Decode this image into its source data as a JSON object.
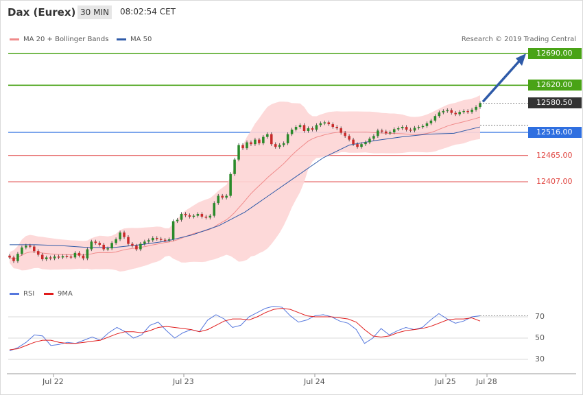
{
  "header": {
    "instrument": "Dax (Eurex)",
    "interval": "30 MIN",
    "clock": "08:02:54 CET"
  },
  "legend": {
    "bollinger_label": "MA 20 + Bollinger Bands",
    "ma50_label": "MA 50",
    "credit": "Research © 2019 Trading Central",
    "rsi_label": "RSI",
    "rsi_ma_label": "9MA"
  },
  "colors": {
    "bollinger_fill": "#fdd5d5",
    "bollinger_line": "#f08a8a",
    "ma50": "#2e5aa8",
    "green_level": "#49a316",
    "blue_level": "#2f6fe0",
    "red_level": "#e35757",
    "candle_up": "#2a8a2a",
    "candle_down": "#c92a2a",
    "rsi": "#5577dd",
    "rsi_ma": "#e01c1c",
    "arrow": "#2e5aa8",
    "last_price_bg": "#333333"
  },
  "price_tags": [
    {
      "label": "12690.00",
      "style": "green"
    },
    {
      "label": "12620.00",
      "style": "green"
    },
    {
      "label": "12580.50",
      "style": "dark"
    },
    {
      "label": "12516.00",
      "style": "blue"
    },
    {
      "label": "12465.00",
      "style": "plain"
    },
    {
      "label": "12407.00",
      "style": "plain"
    }
  ],
  "rsi_axis": [
    "70",
    "50",
    "30"
  ],
  "x_axis": [
    "Jul 22",
    "Jul 23",
    "Jul 24",
    "Jul 25",
    "Jul 28"
  ],
  "chart_data": [
    {
      "type": "candlestick",
      "title": "Dax (Eurex)",
      "interval": "30 MIN",
      "last_price": 12580.5,
      "levels": [
        {
          "value": 12690,
          "kind": "resistance"
        },
        {
          "value": 12620,
          "kind": "resistance"
        },
        {
          "value": 12516,
          "kind": "pivot"
        },
        {
          "value": 12465,
          "kind": "support"
        },
        {
          "value": 12407,
          "kind": "support"
        }
      ],
      "close": [
        12240,
        12232,
        12248,
        12262,
        12266,
        12264,
        12254,
        12246,
        12236,
        12240,
        12238,
        12242,
        12240,
        12243,
        12242,
        12240,
        12250,
        12244,
        12238,
        12258,
        12275,
        12272,
        12268,
        12258,
        12260,
        12272,
        12280,
        12295,
        12285,
        12270,
        12266,
        12258,
        12270,
        12275,
        12278,
        12283,
        12281,
        12279,
        12278,
        12280,
        12320,
        12323,
        12336,
        12333,
        12330,
        12332,
        12336,
        12330,
        12328,
        12332,
        12360,
        12376,
        12372,
        12376,
        12424,
        12456,
        12488,
        12481,
        12494,
        12490,
        12500,
        12492,
        12506,
        12512,
        12490,
        12484,
        12488,
        12492,
        12512,
        12522,
        12528,
        12532,
        12519,
        12525,
        12522,
        12532,
        12536,
        12538,
        12534,
        12528,
        12525,
        12515,
        12508,
        12500,
        12490,
        12484,
        12490,
        12494,
        12502,
        12508,
        12520,
        12518,
        12514,
        12516,
        12523,
        12525,
        12528,
        12522,
        12520,
        12526,
        12528,
        12530,
        12536,
        12542,
        12552,
        12560,
        12563,
        12565,
        12559,
        12556,
        12561,
        12563,
        12561,
        12566,
        12572,
        12580.5
      ],
      "open": [
        12244,
        12240,
        12232,
        12248,
        12262,
        12266,
        12264,
        12254,
        12246,
        12236,
        12240,
        12238,
        12242,
        12240,
        12243,
        12242,
        12240,
        12250,
        12244,
        12238,
        12258,
        12275,
        12272,
        12268,
        12258,
        12260,
        12272,
        12280,
        12295,
        12285,
        12270,
        12266,
        12258,
        12270,
        12275,
        12278,
        12283,
        12281,
        12279,
        12278,
        12280,
        12320,
        12323,
        12336,
        12333,
        12330,
        12332,
        12336,
        12330,
        12328,
        12332,
        12360,
        12376,
        12372,
        12376,
        12424,
        12456,
        12488,
        12481,
        12494,
        12490,
        12500,
        12492,
        12506,
        12512,
        12490,
        12484,
        12488,
        12492,
        12512,
        12522,
        12528,
        12532,
        12519,
        12525,
        12522,
        12532,
        12536,
        12538,
        12534,
        12528,
        12525,
        12515,
        12508,
        12500,
        12490,
        12484,
        12490,
        12494,
        12502,
        12508,
        12520,
        12518,
        12514,
        12516,
        12523,
        12525,
        12528,
        12522,
        12520,
        12526,
        12528,
        12530,
        12536,
        12542,
        12552,
        12560,
        12563,
        12565,
        12559,
        12556,
        12561,
        12563,
        12561,
        12566,
        12572
      ],
      "ma20_start": 12262,
      "ma20_end": 12570,
      "ma50": [
        12268,
        12268,
        12266,
        12262,
        12262,
        12268,
        12276,
        12290,
        12310,
        12340,
        12380,
        12420,
        12460,
        12488,
        12498,
        12506,
        12512,
        12514,
        12528
      ],
      "rsi": {
        "axis_range": [
          20,
          80
        ],
        "levels": [
          70,
          50,
          30
        ],
        "rsi": [
          38,
          41,
          46,
          53,
          52,
          43,
          44,
          46,
          45,
          48,
          51,
          48,
          55,
          60,
          56,
          50,
          53,
          62,
          65,
          57,
          50,
          55,
          58,
          56,
          67,
          72,
          68,
          60,
          62,
          70,
          74,
          78,
          80,
          79,
          71,
          65,
          67,
          71,
          72,
          70,
          66,
          64,
          58,
          45,
          50,
          59,
          53,
          57,
          60,
          58,
          60,
          67,
          73,
          68,
          64,
          66,
          70,
          71
        ],
        "ma9": [
          39,
          40,
          43,
          46,
          48,
          48,
          46,
          45,
          45,
          46,
          47,
          48,
          51,
          54,
          56,
          56,
          55,
          57,
          60,
          61,
          60,
          59,
          58,
          56,
          58,
          62,
          66,
          68,
          68,
          67,
          70,
          74,
          77,
          78,
          77,
          74,
          71,
          70,
          70,
          70,
          69,
          68,
          65,
          58,
          52,
          51,
          52,
          55,
          57,
          58,
          59,
          61,
          64,
          67,
          68,
          68,
          69,
          66
        ]
      }
    }
  ]
}
